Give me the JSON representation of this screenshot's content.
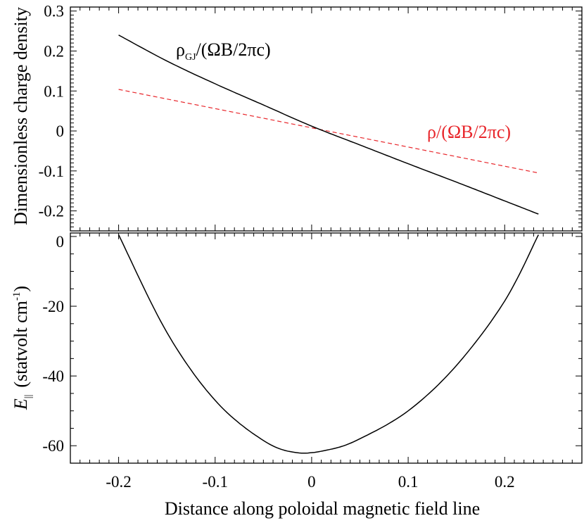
{
  "chart_data": [
    {
      "type": "line",
      "panel": "top",
      "ylabel": "Dimensionless charge density",
      "xlim": [
        -0.25,
        0.28
      ],
      "ylim": [
        -0.25,
        0.31
      ],
      "yticks": [
        0.3,
        0.2,
        0.1,
        0,
        -0.1,
        -0.2
      ],
      "ytick_labels": [
        "0.3",
        "0.2",
        "0.1",
        "0",
        "-0.1",
        "-0.2"
      ],
      "series": [
        {
          "name": "rho_GJ",
          "label_main": "ρ",
          "label_sub": "GJ",
          "label_rest": "/(ΩB/2πc)",
          "color": "#000000",
          "style": "solid",
          "x": [
            -0.2,
            -0.15,
            -0.1,
            -0.05,
            0.0,
            0.05,
            0.1,
            0.15,
            0.2,
            0.235
          ],
          "y": [
            0.24,
            0.175,
            0.118,
            0.065,
            0.012,
            -0.035,
            -0.082,
            -0.128,
            -0.175,
            -0.208
          ]
        },
        {
          "name": "rho",
          "label_text": "ρ/(ΩB/2πc)",
          "color": "#e8262b",
          "style": "dashed",
          "x": [
            -0.2,
            0.235
          ],
          "y": [
            0.104,
            -0.105
          ]
        }
      ]
    },
    {
      "type": "line",
      "panel": "bottom",
      "ylabel_main": "E",
      "ylabel_sub": "||",
      "ylabel_unit_pre": "(statvolt cm",
      "ylabel_unit_sup": "-1",
      "ylabel_unit_post": ")",
      "xlabel": "Distance along poloidal magnetic field line",
      "xlim": [
        -0.25,
        0.28
      ],
      "ylim": [
        -65,
        1
      ],
      "yticks": [
        0,
        -20,
        -40,
        -60
      ],
      "ytick_labels": [
        "0",
        "-20",
        "-40",
        "-60"
      ],
      "xticks": [
        -0.2,
        -0.1,
        0,
        0.1,
        0.2
      ],
      "xtick_labels": [
        "-0.2",
        "-0.1",
        "0",
        "0.1",
        "0.2"
      ],
      "series": [
        {
          "name": "E_parallel",
          "color": "#000000",
          "style": "solid",
          "x": [
            -0.2,
            -0.15,
            -0.1,
            -0.05,
            -0.015,
            0.02,
            0.05,
            0.1,
            0.15,
            0.2,
            0.235
          ],
          "y": [
            0.5,
            -27.5,
            -47.0,
            -58.5,
            -62.0,
            -61.0,
            -58.0,
            -50.0,
            -37.0,
            -18.5,
            0.5
          ]
        }
      ]
    }
  ]
}
